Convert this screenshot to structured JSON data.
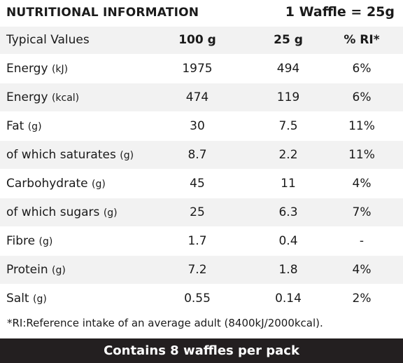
{
  "header": {
    "title": "NUTRITIONAL INFORMATION",
    "serving": "1 Waffle = 25g"
  },
  "table": {
    "columns": [
      "Typical Values",
      "100 g",
      "25 g",
      "% RI*"
    ],
    "rows": [
      {
        "label": "Energy",
        "unit": "(kJ)",
        "per100": "1975",
        "per25": "494",
        "ri": "6%"
      },
      {
        "label": "Energy",
        "unit": "(kcal)",
        "per100": "474",
        "per25": "119",
        "ri": "6%"
      },
      {
        "label": "Fat",
        "unit": "(g)",
        "per100": "30",
        "per25": "7.5",
        "ri": "11%"
      },
      {
        "label": "of which saturates",
        "unit": "(g)",
        "per100": "8.7",
        "per25": "2.2",
        "ri": "11%"
      },
      {
        "label": "Carbohydrate",
        "unit": "(g)",
        "per100": "45",
        "per25": "11",
        "ri": "4%"
      },
      {
        "label": "of which sugars",
        "unit": "(g)",
        "per100": "25",
        "per25": "6.3",
        "ri": "7%"
      },
      {
        "label": "Fibre",
        "unit": "(g)",
        "per100": "1.7",
        "per25": "0.4",
        "ri": "-"
      },
      {
        "label": "Protein",
        "unit": "(g)",
        "per100": "7.2",
        "per25": "1.8",
        "ri": "4%"
      },
      {
        "label": "Salt",
        "unit": "(g)",
        "per100": "0.55",
        "per25": "0.14",
        "ri": "2%"
      }
    ]
  },
  "footnote": "*RI:Reference intake of an average adult (8400kJ/2000kcal).",
  "footer": "Contains 8 waffles per pack"
}
